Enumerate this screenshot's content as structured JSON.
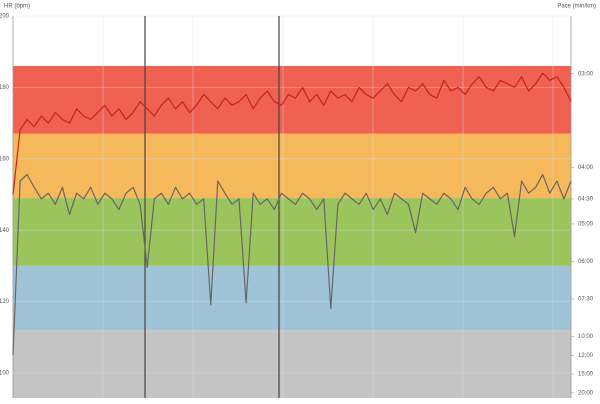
{
  "chart_data": {
    "type": "line",
    "ylabel": "HR (bpm)",
    "y2label": "Pace (min/km)",
    "ylim": [
      93,
      200
    ],
    "yticks": [
      100,
      120,
      140,
      160,
      180,
      200
    ],
    "y2lim": [
      22,
      2.6
    ],
    "y2scale": "reciprocal",
    "y2ticks": [
      {
        "value": 3,
        "label": "03:00"
      },
      {
        "value": 4,
        "label": "04:00"
      },
      {
        "value": 4.5,
        "label": "04:30"
      },
      {
        "value": 5,
        "label": "05:00"
      },
      {
        "value": 6,
        "label": "06:00"
      },
      {
        "value": 7.5,
        "label": "07:30"
      },
      {
        "value": 10,
        "label": "10:00"
      },
      {
        "value": 12,
        "label": "12:00"
      },
      {
        "value": 15,
        "label": "15:00"
      },
      {
        "value": 20,
        "label": "20:00"
      }
    ],
    "bands": [
      {
        "from": 167,
        "to": 186,
        "color": "#ef6150"
      },
      {
        "from": 149,
        "to": 167,
        "color": "#f5b95b"
      },
      {
        "from": 130,
        "to": 149,
        "color": "#9cc45d"
      },
      {
        "from": 112,
        "to": 130,
        "color": "#a0c4d7"
      },
      {
        "from": 93,
        "to": 112,
        "color": "#c4c4c4"
      }
    ],
    "series": [
      {
        "name": "HR",
        "color": "#c8231b",
        "values": [
          150,
          168,
          171,
          169,
          172,
          170,
          173,
          171,
          170,
          174,
          172,
          171,
          173,
          175,
          172,
          174,
          171,
          173,
          176,
          174,
          172,
          175,
          177,
          174,
          176,
          173,
          175,
          178,
          176,
          174,
          177,
          175,
          176,
          178,
          174,
          177,
          179,
          176,
          175,
          178,
          177,
          180,
          176,
          178,
          175,
          179,
          177,
          178,
          176,
          180,
          178,
          177,
          179,
          181,
          178,
          176,
          180,
          179,
          181,
          178,
          177,
          182,
          179,
          180,
          178,
          181,
          183,
          180,
          179,
          182,
          181,
          180,
          183,
          179,
          181,
          184,
          182,
          183,
          180,
          176
        ]
      },
      {
        "name": "Pace",
        "color": "#666666",
        "axis": "y2",
        "values": [
          12,
          4.2,
          4.1,
          4.3,
          4.5,
          4.4,
          4.6,
          4.3,
          4.8,
          4.4,
          4.5,
          4.3,
          4.6,
          4.4,
          4.5,
          4.7,
          4.4,
          4.3,
          4.6,
          6.2,
          4.5,
          4.4,
          4.6,
          4.3,
          4.5,
          4.4,
          4.6,
          4.5,
          7.8,
          4.2,
          4.4,
          4.6,
          4.5,
          7.7,
          4.4,
          4.6,
          4.5,
          4.7,
          4.4,
          4.5,
          4.6,
          4.4,
          4.5,
          4.7,
          4.5,
          8.0,
          4.6,
          4.4,
          4.5,
          4.6,
          4.4,
          4.7,
          4.5,
          4.8,
          4.4,
          4.5,
          4.6,
          5.2,
          4.4,
          4.5,
          4.6,
          4.4,
          4.5,
          4.7,
          4.3,
          4.5,
          4.6,
          4.4,
          4.3,
          4.5,
          4.4,
          5.3,
          4.2,
          4.4,
          4.3,
          4.1,
          4.4,
          4.2,
          4.5,
          4.2
        ]
      }
    ]
  }
}
